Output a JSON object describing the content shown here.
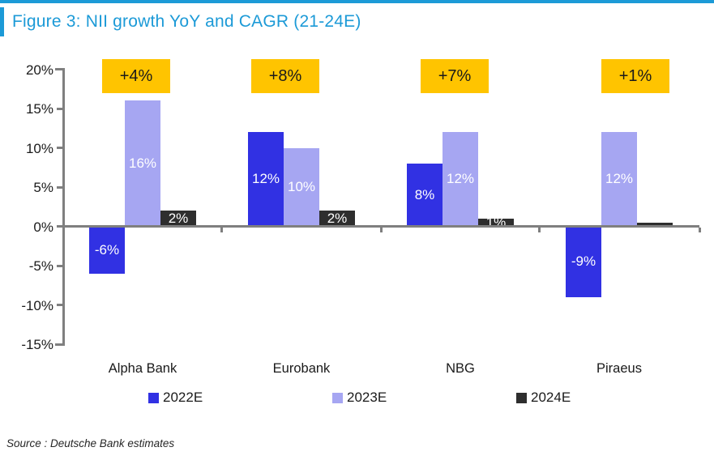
{
  "header": {
    "title": "Figure 3: NII growth YoY and CAGR (21-24E)"
  },
  "colors": {
    "accent_blue": "#1C9AD7",
    "axis_gray": "#7f7f7f",
    "cagr_bg": "#FFC400",
    "series_2022": "#3131E3",
    "series_2023": "#A6A6F2",
    "series_2024": "#2E2E2E"
  },
  "chart_data": {
    "type": "bar",
    "title": "NII growth YoY and CAGR (21-24E)",
    "categories": [
      "Alpha Bank",
      "Eurobank",
      "NBG",
      "Piraeus"
    ],
    "series": [
      {
        "name": "2022E",
        "color": "#3131E3",
        "values": [
          -6,
          12,
          8,
          -9
        ],
        "labels": [
          "-6%",
          "12%",
          "8%",
          "-9%"
        ]
      },
      {
        "name": "2023E",
        "color": "#A6A6F2",
        "values": [
          16,
          10,
          12,
          12
        ],
        "labels": [
          "16%",
          "10%",
          "12%",
          "12%"
        ]
      },
      {
        "name": "2024E",
        "color": "#2E2E2E",
        "values": [
          2,
          2,
          1,
          0.5
        ],
        "labels": [
          "2%",
          "2%",
          "1%",
          ""
        ]
      }
    ],
    "annotations": {
      "cagr_labels": [
        "+4%",
        "+8%",
        "+7%",
        "+1%"
      ],
      "cagr_bg": "#FFC400"
    },
    "y_axis": {
      "tick_labels": [
        "20%",
        "15%",
        "10%",
        "5%",
        "0%",
        "-5%",
        "-10%",
        "-15%"
      ],
      "tick_values": [
        20,
        15,
        10,
        5,
        0,
        -5,
        -10,
        -15
      ],
      "min": -15,
      "max": 20
    },
    "legend": [
      "2022E",
      "2023E",
      "2024E"
    ],
    "legend_position": "bottom",
    "grid": false
  },
  "source": "Source : Deutsche Bank estimates"
}
